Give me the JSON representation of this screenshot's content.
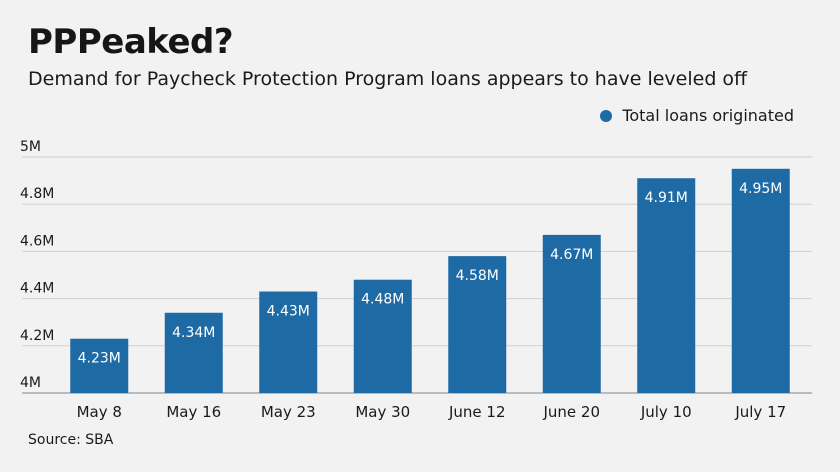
{
  "title": "PPPeaked?",
  "subtitle": "Demand for Paycheck Protection Program loans appears to have leveled off",
  "source": "Source: SBA",
  "colors": {
    "bar": "#1e6aa5",
    "grid": "#cfcfcf",
    "axis": "#9a9a9a",
    "background": "#f2f2f2"
  },
  "chart_data": {
    "type": "bar",
    "title": "PPPeaked?",
    "subtitle": "Demand for Paycheck Protection Program loans appears to have leveled off",
    "categories": [
      "May 8",
      "May 16",
      "May 23",
      "May 30",
      "June 12",
      "June 20",
      "July 10",
      "July 17"
    ],
    "series": [
      {
        "name": "Total loans originated",
        "values": [
          4.23,
          4.34,
          4.43,
          4.48,
          4.58,
          4.67,
          4.91,
          4.95
        ],
        "labels": [
          "4.23M",
          "4.34M",
          "4.43M",
          "4.48M",
          "4.58M",
          "4.67M",
          "4.91M",
          "4.95M"
        ]
      }
    ],
    "ylim": [
      4,
      5
    ],
    "yticks": [
      4,
      4.2,
      4.4,
      4.6,
      4.8,
      5
    ],
    "ytick_labels": [
      "4M",
      "4.2M",
      "4.4M",
      "4.6M",
      "4.8M",
      "5M"
    ],
    "xlabel": "",
    "ylabel": "",
    "grid": true,
    "legend_position": "top-right"
  }
}
